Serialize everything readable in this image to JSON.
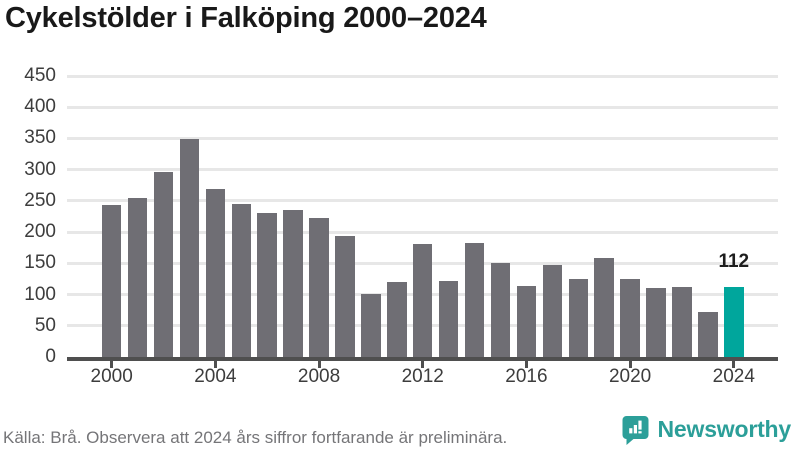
{
  "title": "Cykelstölder i Falköping 2000–2024",
  "footer": {
    "source_note": "Källa: Brå. Observera att 2024 års siffror fortfarande är preliminära."
  },
  "branding": {
    "logo_text": "Newsworthy",
    "logo_icon": "speech-bubble-bar-chart-icon",
    "logo_color": "#2c9f99"
  },
  "colors": {
    "bar": "#6f6e74",
    "highlight_bar": "#00a69c",
    "gridline": "#e7e7e7",
    "axis": "#4f4f4f",
    "tick_text": "#3d3d3d",
    "title_text": "#191919",
    "footer_text": "#757578"
  },
  "chart_data": {
    "type": "bar",
    "title": "Cykelstölder i Falköping 2000–2024",
    "xlabel": "",
    "ylabel": "",
    "x": [
      2000,
      2001,
      2002,
      2003,
      2004,
      2005,
      2006,
      2007,
      2008,
      2009,
      2010,
      2011,
      2012,
      2013,
      2014,
      2015,
      2016,
      2017,
      2018,
      2019,
      2020,
      2021,
      2022,
      2023,
      2024
    ],
    "values": [
      243,
      254,
      296,
      349,
      269,
      245,
      230,
      235,
      222,
      194,
      101,
      120,
      181,
      122,
      182,
      151,
      114,
      148,
      125,
      158,
      125,
      110,
      112,
      72,
      112
    ],
    "highlight_index": 24,
    "highlight_label": "112",
    "ylim": [
      0,
      450
    ],
    "yticks": [
      0,
      50,
      100,
      150,
      200,
      250,
      300,
      350,
      400,
      450
    ],
    "xticks": [
      2000,
      2004,
      2008,
      2012,
      2016,
      2020,
      2024
    ],
    "grid": "horizontal",
    "legend": "none"
  }
}
